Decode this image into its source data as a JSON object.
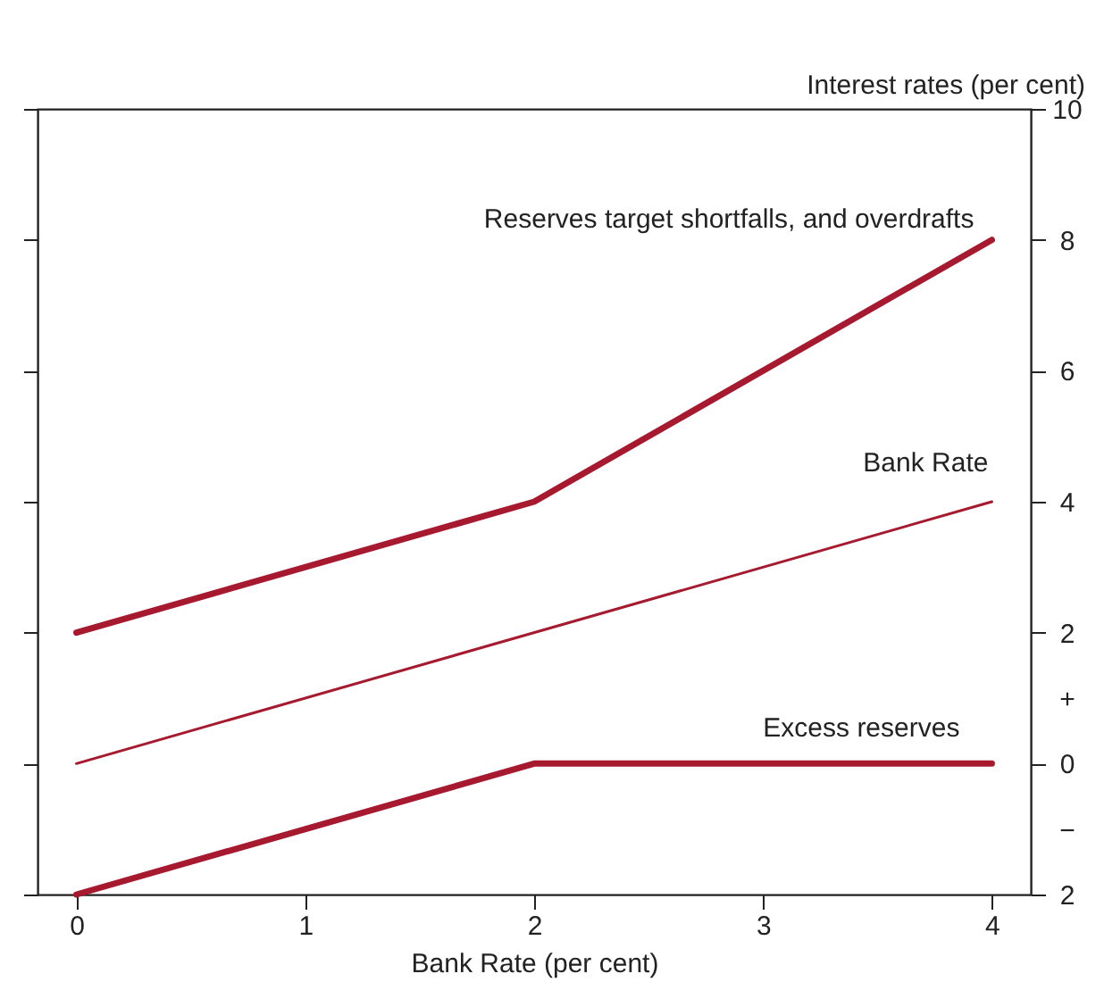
{
  "chart_data": {
    "type": "line",
    "xlabel": "Bank Rate (per cent)",
    "ylabel": "Interest rates (per cent)",
    "xlim": [
      -0.17,
      4.17
    ],
    "xticks": [
      0,
      1,
      2,
      3,
      4
    ],
    "ylim": [
      -2,
      10
    ],
    "yticks": [
      {
        "value": -2,
        "label": "2"
      },
      {
        "value": -1,
        "label": "−"
      },
      0,
      {
        "value": 1,
        "label": "+"
      },
      2,
      4,
      6,
      8,
      10
    ],
    "grid": false,
    "marker": "none",
    "line_style": "solid",
    "series": [
      {
        "name": "Reserves target shortfalls, and overdrafts",
        "color": "#a6192e",
        "x": [
          0,
          2,
          4
        ],
        "values": [
          2,
          4,
          8
        ]
      },
      {
        "name": "Bank Rate",
        "color": "#a6192e",
        "x": [
          0,
          4
        ],
        "values": [
          0,
          4
        ]
      },
      {
        "name": "Excess reserves",
        "color": "#a6192e",
        "x": [
          0,
          2,
          4
        ],
        "values": [
          -2,
          0,
          0
        ]
      }
    ]
  }
}
